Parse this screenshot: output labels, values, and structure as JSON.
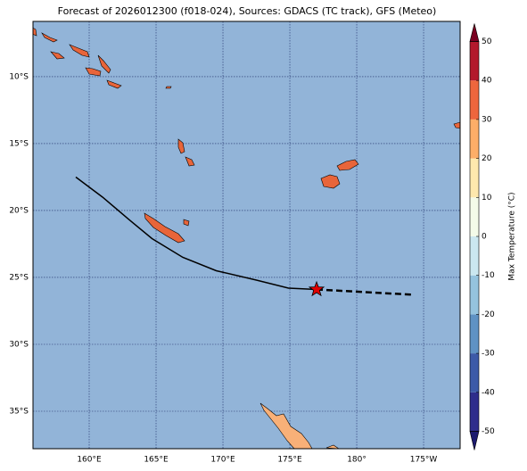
{
  "title": "Forecast of 2026012300 (f018-024), Sources: GDACS (TC track), GFS (Meteo)",
  "map": {
    "lonlim": [
      155.8,
      187.73
    ],
    "latlim": [
      -37.8,
      -5.87
    ],
    "lonticks": [
      {
        "value": 160,
        "label": "160°E"
      },
      {
        "value": 165,
        "label": "165°E"
      },
      {
        "value": 170,
        "label": "170°E"
      },
      {
        "value": 175,
        "label": "175°E"
      },
      {
        "value": 180,
        "label": "180°"
      },
      {
        "value": 185,
        "label": "175°W"
      }
    ],
    "latticks": [
      {
        "value": -10,
        "label": "10°S"
      },
      {
        "value": -15,
        "label": "15°S"
      },
      {
        "value": -20,
        "label": "20°S"
      },
      {
        "value": -25,
        "label": "25°S"
      },
      {
        "value": -30,
        "label": "30°S"
      },
      {
        "value": -35,
        "label": "35°S"
      }
    ],
    "ocean_color": "#92b4d8",
    "track": {
      "lon": [
        159,
        161,
        163,
        164.7,
        167,
        169.5,
        172.5,
        174.9,
        177
      ],
      "lat": [
        -17.5,
        -19,
        -20.7,
        -22.1,
        -23.5,
        -24.5,
        -25.2,
        -25.8,
        -25.9
      ]
    },
    "forecast_track": {
      "lon": [
        177,
        184.3
      ],
      "lat": [
        -25.9,
        -26.3
      ]
    },
    "storm": {
      "lon": 177,
      "lat": -25.9
    }
  },
  "colorbar": {
    "label": "Max Temperature (°C)",
    "lim": [
      -50,
      50
    ],
    "ticks": [
      -50,
      -40,
      -30,
      -20,
      -10,
      0,
      10,
      20,
      30,
      40,
      50
    ],
    "levels": [
      -50,
      -40,
      -30,
      -20,
      -10,
      0,
      10,
      20,
      30,
      40,
      50
    ],
    "colors": [
      "#2e2d8c",
      "#3c5aa8",
      "#5f92c4",
      "#95c3de",
      "#cbe7f0",
      "#f4fbe9",
      "#fee8ad",
      "#fdae68",
      "#ee663d",
      "#b3192c"
    ],
    "under_color": "#1c1a6e",
    "over_color": "#7a0020"
  }
}
